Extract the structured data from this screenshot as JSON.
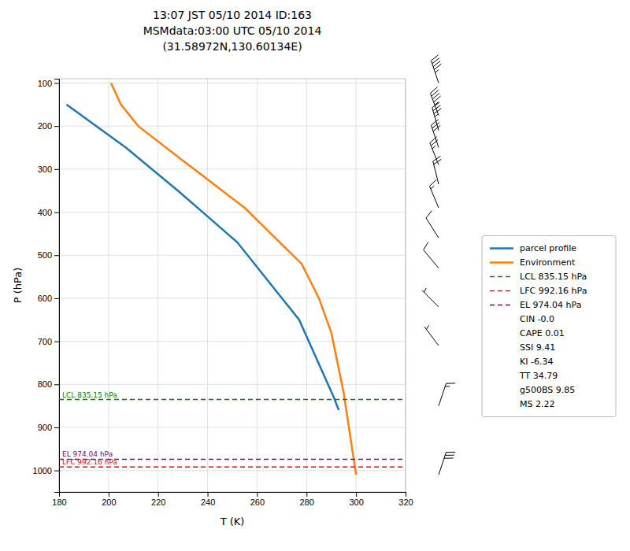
{
  "chart_data": {
    "type": "line",
    "title": [
      "13:07 JST 05/10 2014  ID:163",
      "MSMdata:03:00 UTC 05/10 2014",
      "(31.58972N,130.60134E)"
    ],
    "xlabel": "T (K)",
    "ylabel": "P (hPa)",
    "xlim": [
      180,
      320
    ],
    "ylim": [
      1050,
      90
    ],
    "xticks": [
      180,
      200,
      220,
      240,
      260,
      280,
      300,
      320
    ],
    "yticks": [
      100,
      200,
      300,
      400,
      500,
      600,
      700,
      800,
      900,
      1000
    ],
    "grid": true,
    "legend": "right",
    "series": [
      {
        "name": "parcel profile",
        "color": "#1f77b4",
        "line_style": "solid",
        "x": [
          183,
          207,
          228,
          252,
          277,
          291,
          293
        ],
        "values": [
          150,
          250,
          350,
          470,
          650,
          830,
          860
        ]
      },
      {
        "name": "Environment",
        "color": "#ff7f0e",
        "line_style": "solid",
        "x": [
          201,
          205,
          212,
          230,
          255,
          278,
          285,
          290,
          295,
          300
        ],
        "values": [
          100,
          150,
          200,
          280,
          390,
          520,
          600,
          680,
          820,
          1010
        ]
      },
      {
        "name": "LCL 835.15 hPa",
        "type": "hline",
        "color": "green",
        "line_style": "dashed",
        "values": [
          835.15
        ]
      },
      {
        "name": "LFC 992.16 hPa",
        "type": "hline",
        "color": "red",
        "line_style": "dashed",
        "values": [
          992.16
        ]
      },
      {
        "name": "EL 974.04 hPa",
        "type": "hline",
        "color": "purple",
        "line_style": "dashed",
        "values": [
          974.04
        ]
      }
    ],
    "stats": [
      "CIN -0.0",
      "CAPE 0.01",
      "SSI 9.41",
      "KI -6.34",
      "TT 34.79",
      "g500BS 9.85",
      "MS 2.22"
    ],
    "wind_barbs": {
      "values": [
        100,
        175,
        210,
        250,
        290,
        335,
        390,
        460,
        530,
        620,
        710,
        850,
        1010
      ],
      "u": [
        15,
        15,
        10,
        10,
        10,
        5,
        5,
        5,
        5,
        5,
        3,
        -5,
        -10
      ],
      "v": [
        -45,
        -40,
        -35,
        -30,
        -25,
        -20,
        -12,
        -8,
        -6,
        -5,
        -4,
        -15,
        -30
      ]
    }
  }
}
